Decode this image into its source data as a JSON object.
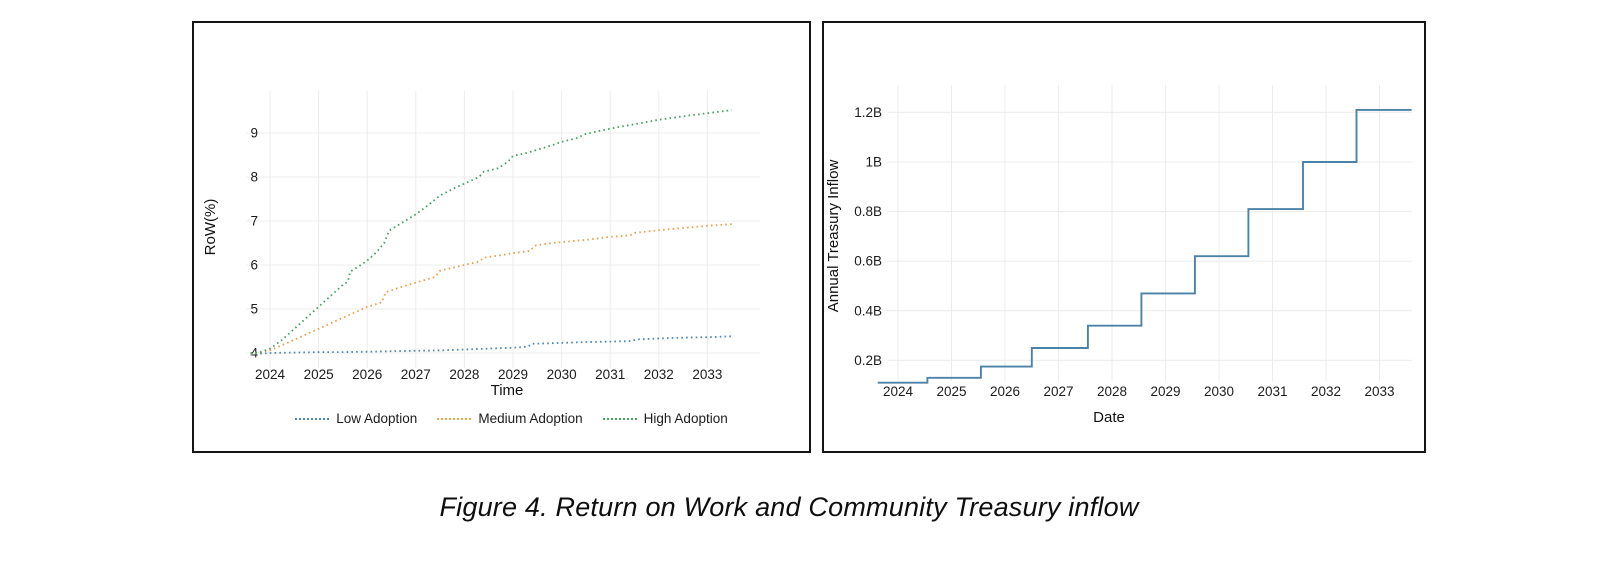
{
  "figure": {
    "caption": "Figure 4. Return on Work and Community Treasury inflow"
  },
  "colors": {
    "low_adoption": "#4c86b4",
    "medium_adoption": "#e9a14b",
    "high_adoption": "#47a164",
    "treasury_step": "#4d82a8",
    "grid": "#ececec",
    "tick_text": "#1c1c1c",
    "axis_title_text": "#111111",
    "panel_border": "#151515"
  },
  "chart_data": [
    {
      "type": "line",
      "title": "",
      "xlabel": "Time",
      "ylabel": "RoW(%)",
      "x_ticks": [
        2024,
        2025,
        2026,
        2027,
        2028,
        2029,
        2030,
        2031,
        2032,
        2033
      ],
      "y_ticks": [
        4,
        5,
        6,
        7,
        8,
        9
      ],
      "xlim": [
        2023.55,
        2033.7
      ],
      "ylim": [
        3.7,
        9.95
      ],
      "grid": true,
      "line_style": "dotted",
      "legend_position": "bottom",
      "series": [
        {
          "name": "Low Adoption",
          "color": "#4c86b4",
          "points": [
            [
              2023.6,
              3.97
            ],
            [
              2024.0,
              4.0
            ],
            [
              2024.5,
              4.01
            ],
            [
              2025.0,
              4.02
            ],
            [
              2025.5,
              4.02
            ],
            [
              2026.0,
              4.03
            ],
            [
              2026.5,
              4.04
            ],
            [
              2027.0,
              4.05
            ],
            [
              2027.5,
              4.06
            ],
            [
              2028.0,
              4.08
            ],
            [
              2028.5,
              4.1
            ],
            [
              2029.0,
              4.12
            ],
            [
              2029.3,
              4.14
            ],
            [
              2029.4,
              4.21
            ],
            [
              2030.0,
              4.23
            ],
            [
              2030.5,
              4.25
            ],
            [
              2031.0,
              4.26
            ],
            [
              2031.4,
              4.27
            ],
            [
              2031.55,
              4.31
            ],
            [
              2032.0,
              4.33
            ],
            [
              2032.5,
              4.35
            ],
            [
              2033.0,
              4.36
            ],
            [
              2033.5,
              4.38
            ]
          ]
        },
        {
          "name": "Medium Adoption",
          "color": "#e9a14b",
          "points": [
            [
              2023.6,
              3.98
            ],
            [
              2024.0,
              4.06
            ],
            [
              2024.5,
              4.3
            ],
            [
              2025.0,
              4.55
            ],
            [
              2025.5,
              4.8
            ],
            [
              2026.0,
              5.05
            ],
            [
              2026.3,
              5.15
            ],
            [
              2026.38,
              5.38
            ],
            [
              2026.7,
              5.5
            ],
            [
              2027.0,
              5.6
            ],
            [
              2027.4,
              5.73
            ],
            [
              2027.5,
              5.87
            ],
            [
              2028.0,
              6.0
            ],
            [
              2028.3,
              6.08
            ],
            [
              2028.42,
              6.17
            ],
            [
              2028.8,
              6.23
            ],
            [
              2029.0,
              6.27
            ],
            [
              2029.35,
              6.32
            ],
            [
              2029.45,
              6.44
            ],
            [
              2029.8,
              6.5
            ],
            [
              2030.0,
              6.52
            ],
            [
              2030.5,
              6.57
            ],
            [
              2031.0,
              6.64
            ],
            [
              2031.4,
              6.67
            ],
            [
              2031.5,
              6.73
            ],
            [
              2032.0,
              6.79
            ],
            [
              2032.5,
              6.84
            ],
            [
              2033.0,
              6.89
            ],
            [
              2033.5,
              6.93
            ]
          ]
        },
        {
          "name": "High Adoption",
          "color": "#47a164",
          "points": [
            [
              2023.6,
              4.0
            ],
            [
              2023.8,
              4.02
            ],
            [
              2024.0,
              4.1
            ],
            [
              2024.25,
              4.3
            ],
            [
              2024.5,
              4.55
            ],
            [
              2024.75,
              4.8
            ],
            [
              2025.0,
              5.05
            ],
            [
              2025.25,
              5.3
            ],
            [
              2025.5,
              5.55
            ],
            [
              2025.6,
              5.62
            ],
            [
              2025.65,
              5.85
            ],
            [
              2025.8,
              5.95
            ],
            [
              2026.0,
              6.1
            ],
            [
              2026.2,
              6.3
            ],
            [
              2026.35,
              6.5
            ],
            [
              2026.45,
              6.78
            ],
            [
              2026.7,
              6.95
            ],
            [
              2027.0,
              7.15
            ],
            [
              2027.3,
              7.4
            ],
            [
              2027.5,
              7.58
            ],
            [
              2027.8,
              7.75
            ],
            [
              2028.0,
              7.85
            ],
            [
              2028.3,
              8.0
            ],
            [
              2028.4,
              8.12
            ],
            [
              2028.7,
              8.2
            ],
            [
              2028.9,
              8.35
            ],
            [
              2029.0,
              8.48
            ],
            [
              2029.3,
              8.55
            ],
            [
              2029.5,
              8.62
            ],
            [
              2029.8,
              8.72
            ],
            [
              2030.0,
              8.8
            ],
            [
              2030.3,
              8.88
            ],
            [
              2030.5,
              8.98
            ],
            [
              2031.0,
              9.1
            ],
            [
              2031.5,
              9.2
            ],
            [
              2032.0,
              9.3
            ],
            [
              2032.5,
              9.38
            ],
            [
              2033.0,
              9.45
            ],
            [
              2033.5,
              9.52
            ]
          ]
        }
      ]
    },
    {
      "type": "step",
      "title": "",
      "xlabel": "Date",
      "ylabel": "Annual Treasury Inflow",
      "x_ticks": [
        2024,
        2025,
        2026,
        2027,
        2028,
        2029,
        2030,
        2031,
        2032,
        2033
      ],
      "y_ticks": [
        {
          "value": 0.2,
          "label": "0.2B"
        },
        {
          "value": 0.4,
          "label": "0.4B"
        },
        {
          "value": 0.6,
          "label": "0.6B"
        },
        {
          "value": 0.8,
          "label": "0.8B"
        },
        {
          "value": 1.0,
          "label": "1B"
        },
        {
          "value": 1.2,
          "label": "1.2B"
        }
      ],
      "xlim": [
        2023.55,
        2033.7
      ],
      "ylim": [
        0,
        1.32
      ],
      "grid": true,
      "color": "#4d82a8",
      "step_x": [
        2023.62,
        2024.55,
        2025.55,
        2026.5,
        2027.55,
        2028.55,
        2029.55,
        2030.55,
        2031.57,
        2032.57
      ],
      "step_end": 2033.6,
      "values": [
        0.11,
        0.13,
        0.175,
        0.25,
        0.34,
        0.47,
        0.62,
        0.81,
        1.0,
        1.21
      ]
    }
  ]
}
